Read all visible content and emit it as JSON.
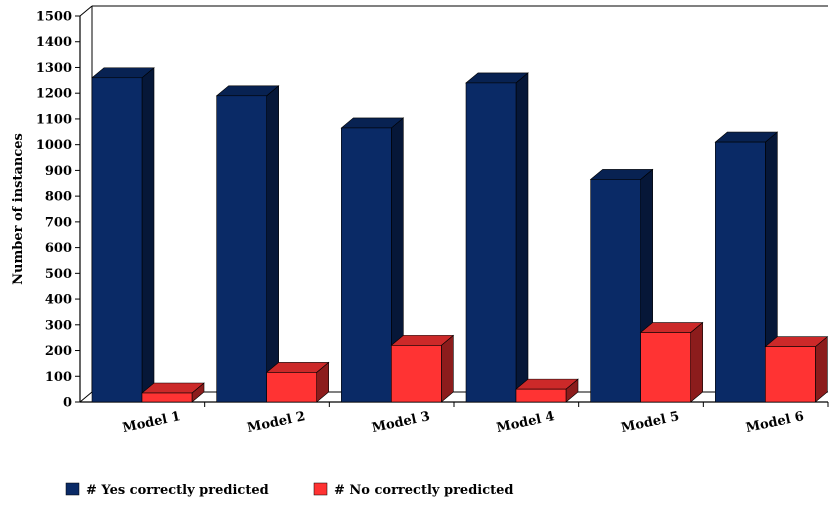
{
  "chart_data": {
    "type": "bar",
    "title": "",
    "xlabel": "",
    "ylabel": "Number of instances",
    "ylim": [
      0,
      1500
    ],
    "yticks": [
      0,
      100,
      200,
      300,
      400,
      500,
      600,
      700,
      800,
      900,
      1000,
      1100,
      1200,
      1300,
      1400,
      1500
    ],
    "categories": [
      "Model 1",
      "Model 2",
      "Model 3",
      "Model 4",
      "Model 5",
      "Model 6"
    ],
    "series": [
      {
        "name": "# Yes correctly predicted",
        "color": "#0a2a66",
        "values": [
          1260,
          1190,
          1065,
          1240,
          865,
          1010
        ]
      },
      {
        "name": "# No correctly predicted",
        "color": "#ff3333",
        "values": [
          35,
          115,
          220,
          50,
          270,
          215
        ]
      }
    ],
    "legend_position": "bottom-left",
    "grid": false,
    "style": "3d-bar"
  }
}
